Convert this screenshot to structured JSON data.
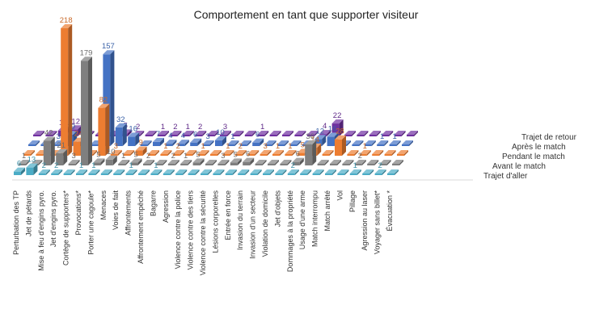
{
  "chart_data": {
    "type": "bar",
    "title": "Comportement en tant que supporter visiteur",
    "categories": [
      "Perturbation des TP",
      "Jet de pétards",
      "Mise à feu d'engins pyro.",
      "Jet d'engins pyro.",
      "Cortège de supporters*",
      "Provocations*",
      "Porter une cagoule*",
      "Menaces",
      "Voies de fait",
      "Affrontements",
      "Affrontement empêché",
      "Bagarre",
      "Agression",
      "Violence contre la police",
      "Violence contre des tiers",
      "Violence contre la sécurité",
      "Lésions corporelles",
      "Entrée en force",
      "Invasion du terrain",
      "Invasion d'un secteur",
      "Violation de domicile",
      "Jet d'objets",
      "Dommages à la propriété",
      "Usage d'une arme",
      "Match interrompu",
      "Match arrêté",
      "Vol",
      "Pillage",
      "Agression au laser",
      "Voyager sans billet*",
      "Évacuation *"
    ],
    "series": [
      {
        "name": "Trajet d'aller",
        "color": "#4bacc6",
        "values": [
          6,
          13,
          2,
          2,
          0,
          1,
          1,
          0,
          0,
          1,
          0,
          1,
          0,
          0,
          0,
          0,
          0,
          0,
          0,
          0,
          0,
          0,
          2,
          0,
          0,
          0,
          0,
          1,
          0,
          2,
          0
        ]
      },
      {
        "name": "Avant le match",
        "color": "#7f7f7f",
        "values": [
          1,
          0,
          42,
          21,
          3,
          179,
          5,
          10,
          1,
          5,
          2,
          0,
          2,
          1,
          5,
          0,
          3,
          5,
          6,
          0,
          0,
          0,
          6,
          36,
          0,
          0,
          0,
          2,
          0,
          0,
          0
        ]
      },
      {
        "name": "Pendant le match",
        "color": "#ed7d31",
        "values": [
          0,
          0,
          0,
          218,
          24,
          0,
          82,
          3,
          0,
          9,
          0,
          1,
          2,
          0,
          1,
          0,
          1,
          2,
          0,
          3,
          1,
          1,
          5,
          14,
          0,
          28,
          0,
          1,
          0,
          0,
          0
        ]
      },
      {
        "name": "Après le match",
        "color": "#4472c4",
        "values": [
          0,
          0,
          3,
          19,
          10,
          0,
          157,
          32,
          16,
          0,
          7,
          4,
          4,
          6,
          3,
          10,
          1,
          0,
          6,
          0,
          0,
          0,
          0,
          12,
          16,
          0,
          0,
          0,
          1,
          1,
          0
        ]
      },
      {
        "name": "Trajet de retour",
        "color": "#7030a0",
        "values": [
          0,
          0,
          10,
          12,
          0,
          2,
          0,
          5,
          2,
          0,
          1,
          2,
          1,
          2,
          0,
          3,
          0,
          0,
          1,
          0,
          0,
          0,
          0,
          4,
          22,
          0,
          0,
          0,
          0,
          0,
          0
        ]
      }
    ]
  }
}
